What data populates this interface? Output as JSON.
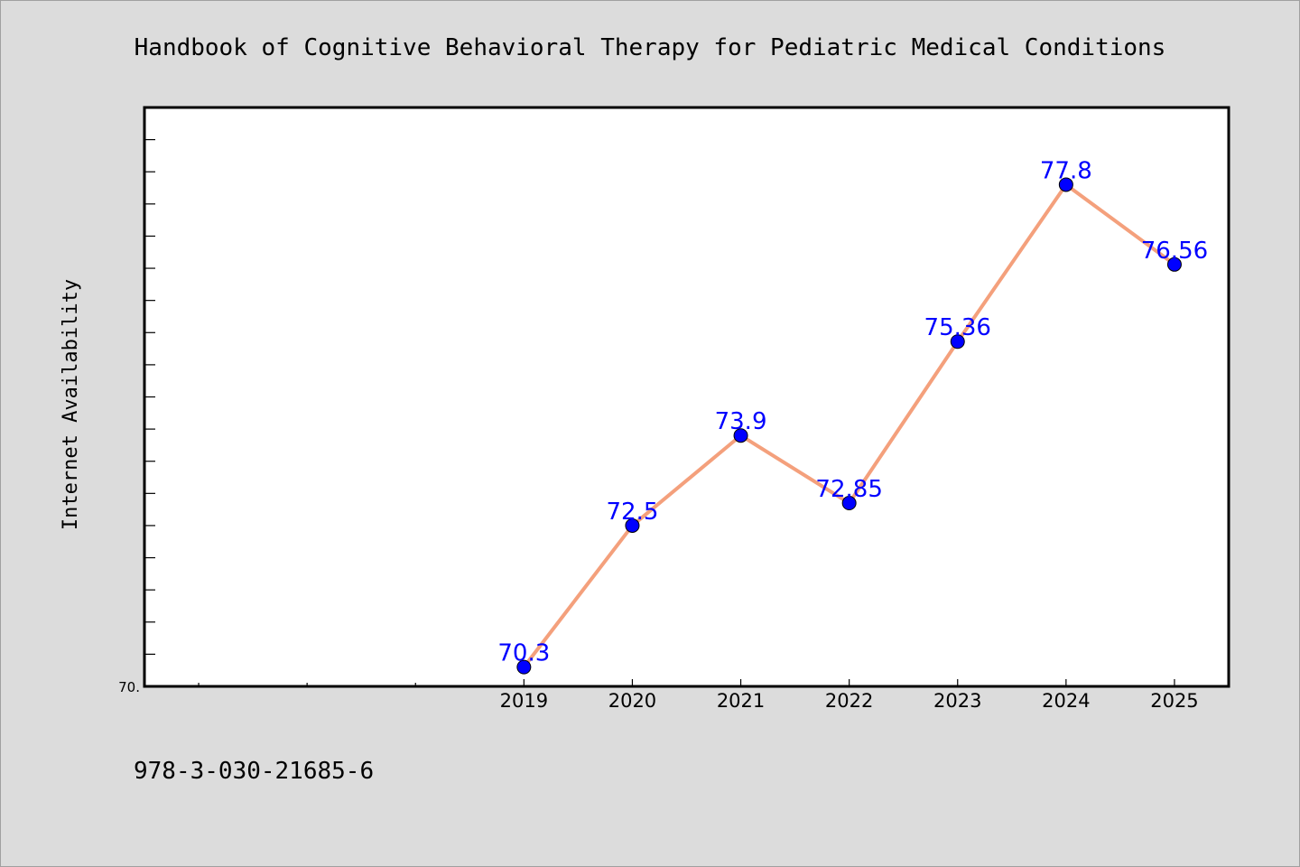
{
  "chart_data": {
    "type": "line",
    "title": "Handbook of Cognitive Behavioral Therapy for Pediatric Medical Conditions",
    "ylabel": "Internet Availability",
    "xlabel": "",
    "x_ticks": [
      "2019",
      "2020",
      "2021",
      "2022",
      "2023",
      "2024",
      "2025"
    ],
    "y_tick_label": "70.",
    "series": [
      {
        "x": [
          2019,
          2020,
          2021,
          2022,
          2023,
          2024,
          2025
        ],
        "values": [
          70.3,
          72.5,
          73.9,
          72.85,
          75.36,
          77.8,
          76.56
        ],
        "labels": [
          "70.3",
          "72.5",
          "73.9",
          "72.85",
          "75.36",
          "77.8",
          "76.56"
        ]
      }
    ],
    "xlim": [
      2015.5,
      2025.5
    ],
    "ylim": [
      70.0,
      79.0
    ],
    "grid": false,
    "line_color": "#f4a07c",
    "marker_color": "#0000ff",
    "label_color": "#0000ff"
  },
  "footer": {
    "isbn": "978-3-030-21685-6"
  }
}
